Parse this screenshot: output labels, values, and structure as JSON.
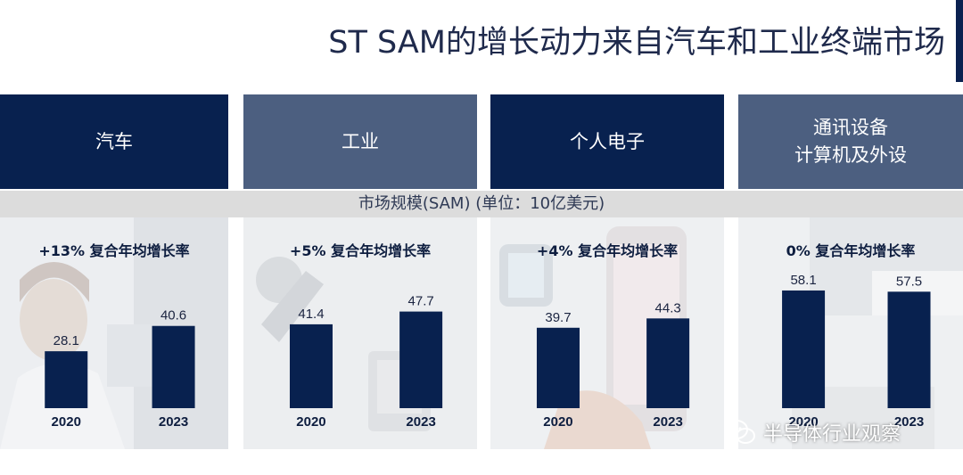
{
  "title": "ST SAM的增长动力来自汽车和工业终端市场",
  "sam_band": "市场规模(SAM) (单位：10亿美元)",
  "markets": [
    {
      "name": "汽车"
    },
    {
      "name": "工业"
    },
    {
      "name": "个人电子"
    },
    {
      "name_lines": [
        "通讯设备",
        "计算机及外设"
      ]
    }
  ],
  "watermark": "半导体行业观察",
  "colors": {
    "bar": "#08214f",
    "header_dark": "#08214f",
    "header_light": "#4c5f80",
    "band": "#dcdcdc"
  },
  "chart_data": [
    {
      "type": "bar",
      "title": "+13% 复合年均增长率",
      "categories": [
        "2020",
        "2023"
      ],
      "values": [
        28.1,
        40.6
      ],
      "labels": [
        "28.1",
        "40.6"
      ],
      "ylim": [
        0,
        66
      ]
    },
    {
      "type": "bar",
      "title": "+5% 复合年均增长率",
      "categories": [
        "2020",
        "2023"
      ],
      "values": [
        41.4,
        47.7
      ],
      "labels": [
        "41.4",
        "47.7"
      ],
      "ylim": [
        0,
        66
      ]
    },
    {
      "type": "bar",
      "title": "+4% 复合年均增长率",
      "categories": [
        "2020",
        "2023"
      ],
      "values": [
        39.7,
        44.3
      ],
      "labels": [
        "39.7",
        "44.3"
      ],
      "ylim": [
        0,
        66
      ]
    },
    {
      "type": "bar",
      "title": "0% 复合年均增长率",
      "categories": [
        "2020",
        "2023"
      ],
      "values": [
        58.1,
        57.5
      ],
      "labels": [
        "58.1",
        "57.5"
      ],
      "ylim": [
        0,
        66
      ]
    }
  ]
}
